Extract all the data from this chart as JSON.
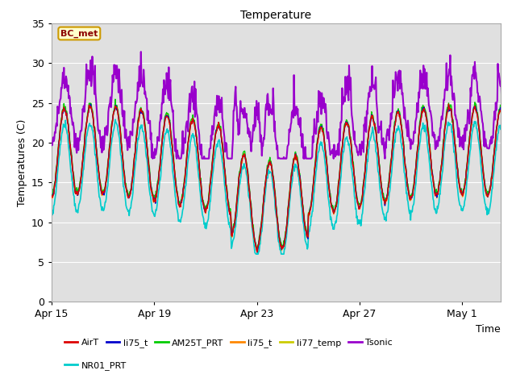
{
  "title": "Temperature",
  "xlabel": "Time",
  "ylabel": "Temperatures (C)",
  "ylim": [
    0,
    35
  ],
  "xlim_days": [
    0,
    17.5
  ],
  "tick_labels": [
    "Apr 15",
    "Apr 19",
    "Apr 23",
    "Apr 27",
    "May 1"
  ],
  "tick_positions": [
    0,
    4,
    8,
    12,
    16
  ],
  "annotation_text": "BC_met",
  "background_color": "#ffffff",
  "plot_bg_color": "#e0e0e0",
  "grid_color": "#ffffff",
  "series": {
    "AirT": {
      "color": "#dd0000",
      "lw": 1.0
    },
    "li75_t_b": {
      "color": "#0000cc",
      "lw": 1.0
    },
    "AM25T_PRT": {
      "color": "#00cc00",
      "lw": 1.0
    },
    "li75_t": {
      "color": "#ff8800",
      "lw": 1.0
    },
    "li77_temp": {
      "color": "#cccc00",
      "lw": 1.0
    },
    "Tsonic": {
      "color": "#9900cc",
      "lw": 1.5
    },
    "NR01_PRT": {
      "color": "#00cccc",
      "lw": 1.2
    }
  },
  "legend_labels": [
    "AirT",
    "li75_t",
    "AM25T_PRT",
    "li75_t",
    "li77_temp",
    "Tsonic",
    "NR01_PRT"
  ],
  "legend_colors": [
    "#dd0000",
    "#0000cc",
    "#00cc00",
    "#ff8800",
    "#cccc00",
    "#9900cc",
    "#00cccc"
  ],
  "figsize": [
    6.4,
    4.8
  ],
  "dpi": 100
}
